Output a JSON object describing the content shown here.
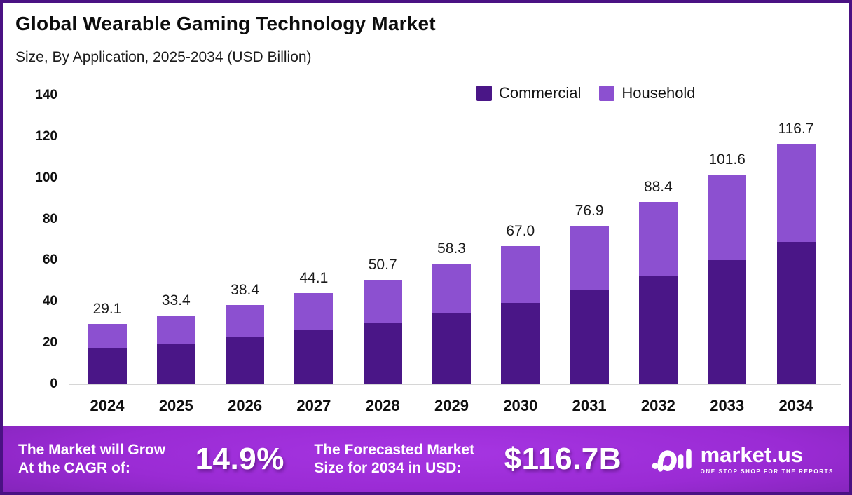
{
  "header": {
    "title": "Global Wearable Gaming Technology Market",
    "subtitle": "Size, By Application, 2025-2034 (USD Billion)"
  },
  "legend": [
    {
      "label": "Commercial",
      "color": "#4a1687"
    },
    {
      "label": "Household",
      "color": "#8c50d0"
    }
  ],
  "chart_data": {
    "type": "bar",
    "stacked": true,
    "title": "Global Wearable Gaming Technology Market Size, By Application, 2025-2034 (USD Billion)",
    "categories": [
      "2024",
      "2025",
      "2026",
      "2027",
      "2028",
      "2029",
      "2030",
      "2031",
      "2032",
      "2033",
      "2034"
    ],
    "series": [
      {
        "name": "Commercial",
        "color": "#4a1687",
        "values": [
          17.2,
          19.7,
          22.7,
          26.0,
          29.9,
          34.4,
          39.5,
          45.4,
          52.3,
          60.0,
          68.9
        ]
      },
      {
        "name": "Household",
        "color": "#8c50d0",
        "values": [
          11.9,
          13.7,
          15.7,
          18.1,
          20.8,
          23.9,
          27.5,
          31.5,
          36.1,
          41.6,
          47.8
        ]
      }
    ],
    "totals": [
      29.1,
      33.4,
      38.4,
      44.1,
      50.7,
      58.3,
      67.0,
      76.9,
      88.4,
      101.6,
      116.7
    ],
    "total_labels": [
      "29.1",
      "33.4",
      "38.4",
      "44.1",
      "50.7",
      "58.3",
      "67.0",
      "76.9",
      "88.4",
      "101.6",
      "116.7"
    ],
    "xlabel": "",
    "ylabel": "",
    "ylim": [
      0,
      140
    ],
    "yticks": [
      0,
      20,
      40,
      60,
      80,
      100,
      120,
      140
    ],
    "grid": false,
    "legend_position": "top-right"
  },
  "footer": {
    "cagr_line1": "The Market will Grow",
    "cagr_line2": "At the CAGR of:",
    "cagr_value": "14.9%",
    "forecast_line1": "The Forecasted Market",
    "forecast_line2": "Size for 2034 in USD:",
    "forecast_value": "$116.7B",
    "brand_name": "market.us",
    "brand_tagline": "ONE STOP SHOP FOR THE REPORTS"
  },
  "colors": {
    "frame_border": "#4a1283",
    "axis_line": "#d6d6d6",
    "banner_bright": "#9a2bd4",
    "banner_dark": "#3a0d58"
  }
}
